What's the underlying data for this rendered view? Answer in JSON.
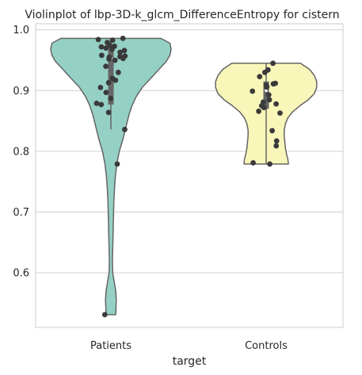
{
  "chart_data": {
    "type": "violin",
    "title": "Violinplot of lbp-3D-k_glcm_DifferenceEntropy for cistern",
    "xlabel": "target",
    "ylabel": "",
    "categories": [
      "Patients",
      "Controls"
    ],
    "ylim": [
      0.51,
      1.01
    ],
    "yticks": [
      0.6,
      0.7,
      0.8,
      0.9,
      1.0
    ],
    "ytick_labels": [
      "0.6",
      "0.7",
      "0.8",
      "0.9",
      "1.0"
    ],
    "grid": "horizontal",
    "colors": {
      "Patients": "#95d0c5",
      "Controls": "#f8f7b9",
      "outline": "#656565",
      "points": "#3a3a3a",
      "grid": "#d0d0d0",
      "axes": "#cccccc"
    },
    "series": [
      {
        "category": "Patients",
        "range": [
          0.531,
          0.986
        ],
        "quartiles": [
          0.877,
          0.953,
          0.971
        ],
        "whiskers": [
          0.836,
          0.986
        ],
        "density_width": [
          [
            0.986,
            0.83
          ],
          [
            0.978,
            0.98
          ],
          [
            0.968,
            1.0
          ],
          [
            0.958,
            0.98
          ],
          [
            0.948,
            0.92
          ],
          [
            0.935,
            0.8
          ],
          [
            0.92,
            0.66
          ],
          [
            0.905,
            0.52
          ],
          [
            0.89,
            0.42
          ],
          [
            0.875,
            0.35
          ],
          [
            0.86,
            0.3
          ],
          [
            0.84,
            0.25
          ],
          [
            0.82,
            0.2
          ],
          [
            0.8,
            0.14
          ],
          [
            0.78,
            0.1
          ],
          [
            0.76,
            0.075
          ],
          [
            0.74,
            0.06
          ],
          [
            0.72,
            0.05
          ],
          [
            0.7,
            0.045
          ],
          [
            0.68,
            0.04
          ],
          [
            0.66,
            0.035
          ],
          [
            0.64,
            0.03
          ],
          [
            0.62,
            0.025
          ],
          [
            0.6,
            0.03
          ],
          [
            0.585,
            0.055
          ],
          [
            0.57,
            0.08
          ],
          [
            0.555,
            0.09
          ],
          [
            0.545,
            0.085
          ],
          [
            0.531,
            0.08
          ]
        ],
        "points": [
          0.986,
          0.984,
          0.983,
          0.979,
          0.975,
          0.973,
          0.972,
          0.97,
          0.968,
          0.966,
          0.963,
          0.958,
          0.957,
          0.956,
          0.955,
          0.953,
          0.952,
          0.95,
          0.94,
          0.93,
          0.92,
          0.917,
          0.913,
          0.905,
          0.897,
          0.887,
          0.879,
          0.877,
          0.864,
          0.836,
          0.779,
          0.531
        ]
      },
      {
        "category": "Controls",
        "range": [
          0.779,
          0.945
        ],
        "quartiles": [
          0.87,
          0.9,
          0.915
        ],
        "whiskers": [
          0.779,
          0.945
        ],
        "density_width": [
          [
            0.945,
            0.57
          ],
          [
            0.935,
            0.72
          ],
          [
            0.925,
            0.8
          ],
          [
            0.915,
            0.84
          ],
          [
            0.905,
            0.84
          ],
          [
            0.895,
            0.8
          ],
          [
            0.885,
            0.7
          ],
          [
            0.875,
            0.56
          ],
          [
            0.865,
            0.44
          ],
          [
            0.855,
            0.36
          ],
          [
            0.845,
            0.32
          ],
          [
            0.835,
            0.3
          ],
          [
            0.825,
            0.3
          ],
          [
            0.815,
            0.31
          ],
          [
            0.805,
            0.32
          ],
          [
            0.795,
            0.34
          ],
          [
            0.787,
            0.36
          ],
          [
            0.779,
            0.37
          ]
        ],
        "points": [
          0.945,
          0.934,
          0.93,
          0.923,
          0.912,
          0.911,
          0.909,
          0.907,
          0.906,
          0.899,
          0.893,
          0.885,
          0.881,
          0.878,
          0.875,
          0.872,
          0.866,
          0.863,
          0.834,
          0.817,
          0.809,
          0.781,
          0.779
        ]
      }
    ]
  }
}
